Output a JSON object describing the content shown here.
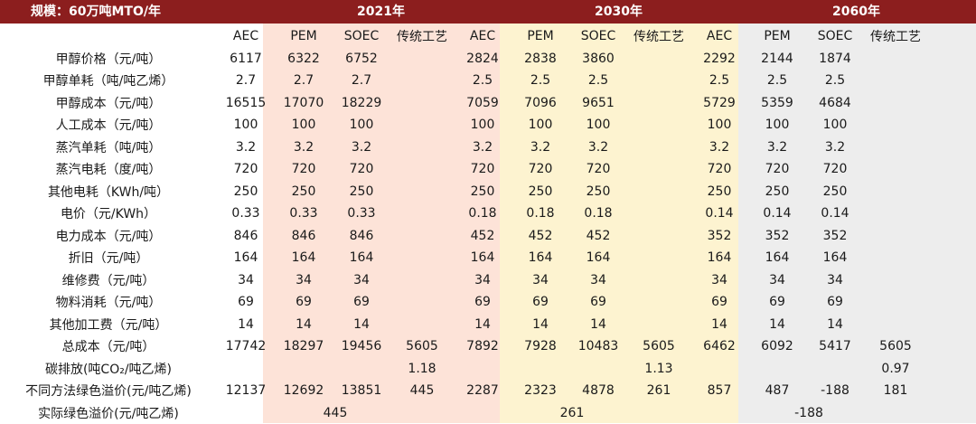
{
  "header": {
    "scale": "规模：60万吨MTO/年",
    "periods": [
      "2021年",
      "2030年",
      "2060年"
    ]
  },
  "columns": [
    "AEC",
    "PEM",
    "SOEC",
    "传统工艺",
    "AEC",
    "PEM",
    "SOEC",
    "传统工艺",
    "AEC",
    "PEM",
    "SOEC",
    "传统工艺"
  ],
  "rows": [
    {
      "label": "甲醇价格（元/吨）",
      "values": [
        "6117",
        "6322",
        "6752",
        "",
        "2824",
        "2838",
        "3860",
        "",
        "2292",
        "2144",
        "1874",
        ""
      ]
    },
    {
      "label": "甲醇单耗（吨/吨乙烯）",
      "values": [
        "2.7",
        "2.7",
        "2.7",
        "",
        "2.5",
        "2.5",
        "2.5",
        "",
        "2.5",
        "2.5",
        "2.5",
        ""
      ]
    },
    {
      "label": "甲醇成本（元/吨）",
      "values": [
        "16515",
        "17070",
        "18229",
        "",
        "7059",
        "7096",
        "9651",
        "",
        "5729",
        "5359",
        "4684",
        ""
      ]
    },
    {
      "label": "人工成本（元/吨）",
      "values": [
        "100",
        "100",
        "100",
        "",
        "100",
        "100",
        "100",
        "",
        "100",
        "100",
        "100",
        ""
      ]
    },
    {
      "label": "蒸汽单耗（吨/吨）",
      "values": [
        "3.2",
        "3.2",
        "3.2",
        "",
        "3.2",
        "3.2",
        "3.2",
        "",
        "3.2",
        "3.2",
        "3.2",
        ""
      ]
    },
    {
      "label": "蒸汽电耗（度/吨）",
      "values": [
        "720",
        "720",
        "720",
        "",
        "720",
        "720",
        "720",
        "",
        "720",
        "720",
        "720",
        ""
      ]
    },
    {
      "label": "其他电耗（KWh/吨）",
      "values": [
        "250",
        "250",
        "250",
        "",
        "250",
        "250",
        "250",
        "",
        "250",
        "250",
        "250",
        ""
      ]
    },
    {
      "label": "电价（元/KWh）",
      "values": [
        "0.33",
        "0.33",
        "0.33",
        "",
        "0.18",
        "0.18",
        "0.18",
        "",
        "0.14",
        "0.14",
        "0.14",
        ""
      ]
    },
    {
      "label": "电力成本（元/吨）",
      "values": [
        "846",
        "846",
        "846",
        "",
        "452",
        "452",
        "452",
        "",
        "352",
        "352",
        "352",
        ""
      ]
    },
    {
      "label": "折旧（元/吨）",
      "values": [
        "164",
        "164",
        "164",
        "",
        "164",
        "164",
        "164",
        "",
        "164",
        "164",
        "164",
        ""
      ]
    },
    {
      "label": "维修费（元/吨）",
      "values": [
        "34",
        "34",
        "34",
        "",
        "34",
        "34",
        "34",
        "",
        "34",
        "34",
        "34",
        ""
      ]
    },
    {
      "label": "物料消耗（元/吨）",
      "values": [
        "69",
        "69",
        "69",
        "",
        "69",
        "69",
        "69",
        "",
        "69",
        "69",
        "69",
        ""
      ]
    },
    {
      "label": "其他加工费（元/吨）",
      "values": [
        "14",
        "14",
        "14",
        "",
        "14",
        "14",
        "14",
        "",
        "14",
        "14",
        "14",
        ""
      ]
    },
    {
      "label": "总成本（元/吨）",
      "values": [
        "17742",
        "18297",
        "19456",
        "5605",
        "7892",
        "7928",
        "10483",
        "5605",
        "6462",
        "6092",
        "5417",
        "5605"
      ]
    },
    {
      "label": "碳排放(吨CO₂/吨乙烯)",
      "values": [
        "",
        "",
        "",
        "1.18",
        "",
        "",
        "",
        "1.13",
        "",
        "",
        "",
        "0.97"
      ]
    },
    {
      "label": "不同方法绿色溢价(元/吨乙烯)",
      "values": [
        "12137",
        "12692",
        "13851",
        "445",
        "2287",
        "2323",
        "4878",
        "261",
        "857",
        "487",
        "-188",
        "181"
      ]
    }
  ],
  "summary": {
    "label": "实际绿色溢价(元/吨乙烯)",
    "values": [
      "445",
      "261",
      "-188"
    ]
  },
  "colors": {
    "header_bg": "#8c1e1e",
    "band_2021": "#fde3d8",
    "band_2030": "#fdf3d0",
    "band_2060": "#ededed"
  }
}
